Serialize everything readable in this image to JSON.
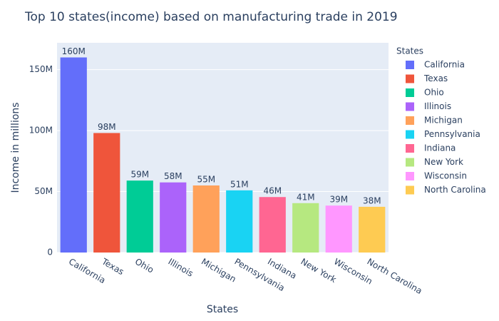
{
  "chart_data": {
    "type": "bar",
    "title": "Top 10 states(income) based on manufacturing trade in 2019",
    "x_label": "States",
    "y_label": "Income in millions",
    "legend_title": "States",
    "categories": [
      "California",
      "Texas",
      "Ohio",
      "Illinois",
      "Michigan",
      "Pennsylvania",
      "Indiana",
      "New York",
      "Wisconsin",
      "North Carolina"
    ],
    "values": [
      160,
      98,
      59,
      57.5,
      55,
      51,
      45.5,
      40.5,
      38.5,
      37.5
    ],
    "value_labels": [
      "160M",
      "98M",
      "59M",
      "58M",
      "55M",
      "51M",
      "46M",
      "41M",
      "39M",
      "38M"
    ],
    "colors": [
      "#636efa",
      "#ef553b",
      "#00cc96",
      "#ab63fa",
      "#ffa15a",
      "#19d3f3",
      "#ff6692",
      "#b6e880",
      "#ff97ff",
      "#fecb52"
    ],
    "ylim": [
      0,
      172
    ],
    "yticks": [
      0,
      {
        "value": 50,
        "label": "50M"
      },
      {
        "value": 100,
        "label": "100M"
      },
      {
        "value": 150,
        "label": "150M"
      }
    ],
    "grid": true,
    "legend": "right"
  }
}
